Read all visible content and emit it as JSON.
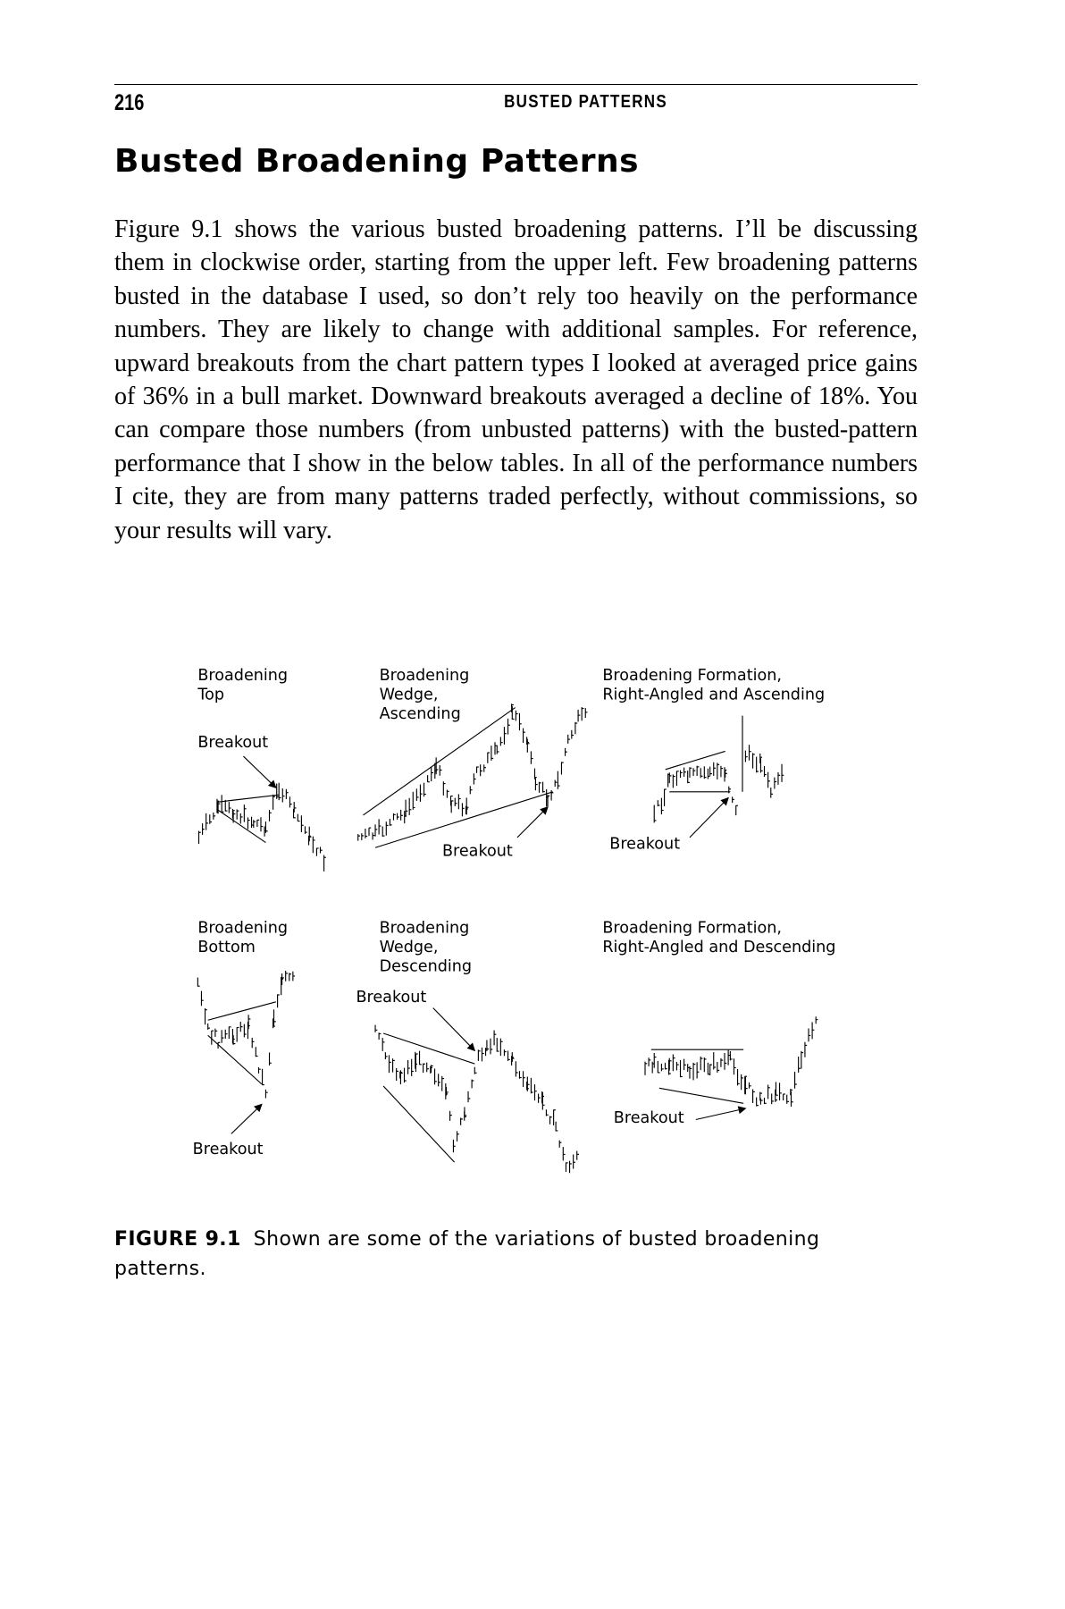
{
  "header": {
    "page_number": "216",
    "running_head": "BUSTED PATTERNS"
  },
  "section_title": "Busted Broadening Patterns",
  "body_text": "Figure 9.1 shows the various busted broadening patterns. I’ll be discussing them in clockwise order, starting from the upper left. Few broadening patterns busted in the database I used, so don’t rely too heavily on the performance numbers. They are likely to change with additional samples. For reference, upward breakouts from the chart pattern types I looked at averaged price gains of 36% in a bull market. Downward breakouts averaged a decline of 18%. You can compare those numbers (from unbusted patterns) with the busted-pattern performance that I show in the below tables. In all of the performance numbers I cite, they are from many patterns traded perfectly, without commissions, so your results will vary.",
  "figure": {
    "panels": [
      {
        "title_lines": [
          "Broadening",
          "Top"
        ],
        "breakout_label": "Breakout"
      },
      {
        "title_lines": [
          "Broadening",
          "Wedge,",
          "Ascending"
        ],
        "breakout_label": "Breakout"
      },
      {
        "title_lines": [
          "Broadening Formation,",
          "Right-Angled and Ascending"
        ],
        "breakout_label": "Breakout"
      },
      {
        "title_lines": [
          "Broadening",
          "Bottom"
        ],
        "breakout_label": "Breakout"
      },
      {
        "title_lines": [
          "Broadening",
          "Wedge,",
          "Descending"
        ],
        "breakout_label": "Breakout"
      },
      {
        "title_lines": [
          "Broadening Formation,",
          "Right-Angled and Descending"
        ],
        "breakout_label": "Breakout"
      }
    ],
    "caption_label": "FIGURE 9.1",
    "caption_text": "Shown are some of the variations of busted broadening patterns."
  }
}
